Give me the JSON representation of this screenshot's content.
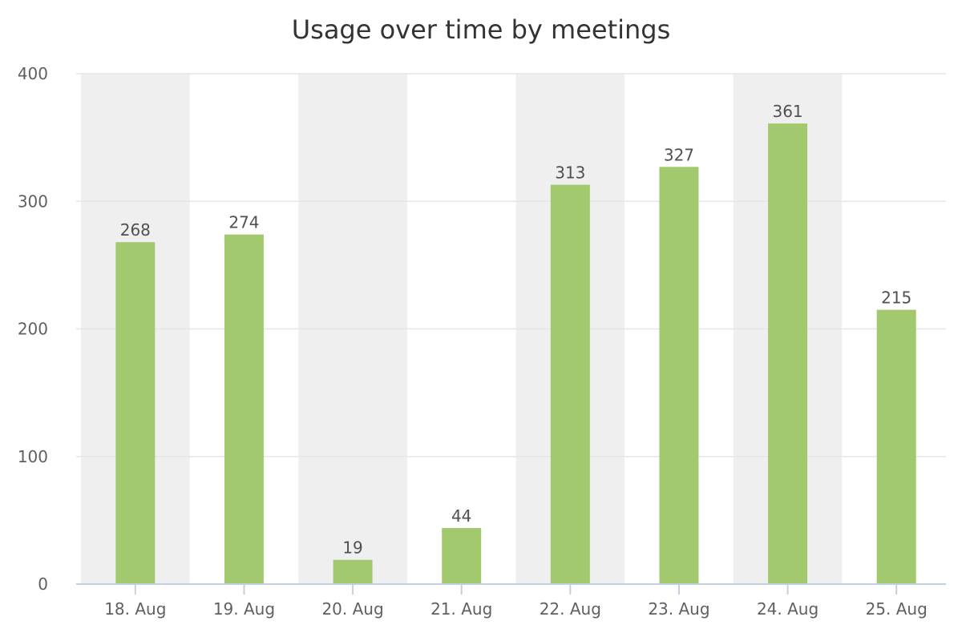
{
  "chart_data": {
    "type": "bar",
    "title": "Usage over time by meetings",
    "xlabel": "",
    "ylabel": "",
    "categories": [
      "18. Aug",
      "19. Aug",
      "20. Aug",
      "21. Aug",
      "22. Aug",
      "23. Aug",
      "24. Aug",
      "25. Aug"
    ],
    "values": [
      268,
      274,
      19,
      44,
      313,
      327,
      361,
      215
    ],
    "ylim": [
      0,
      400
    ],
    "yticks": [
      0,
      100,
      200,
      300,
      400
    ],
    "grid": true,
    "data_labels": true,
    "legend": "none",
    "alternate_band_fill": true
  },
  "colors": {
    "bar": "#a3c96f",
    "band": "#efefef",
    "gridline": "#e6e6e6",
    "axis": "#c0d0e0",
    "title": "#333333",
    "tick_text": "#606060",
    "label_text": "#505050"
  }
}
